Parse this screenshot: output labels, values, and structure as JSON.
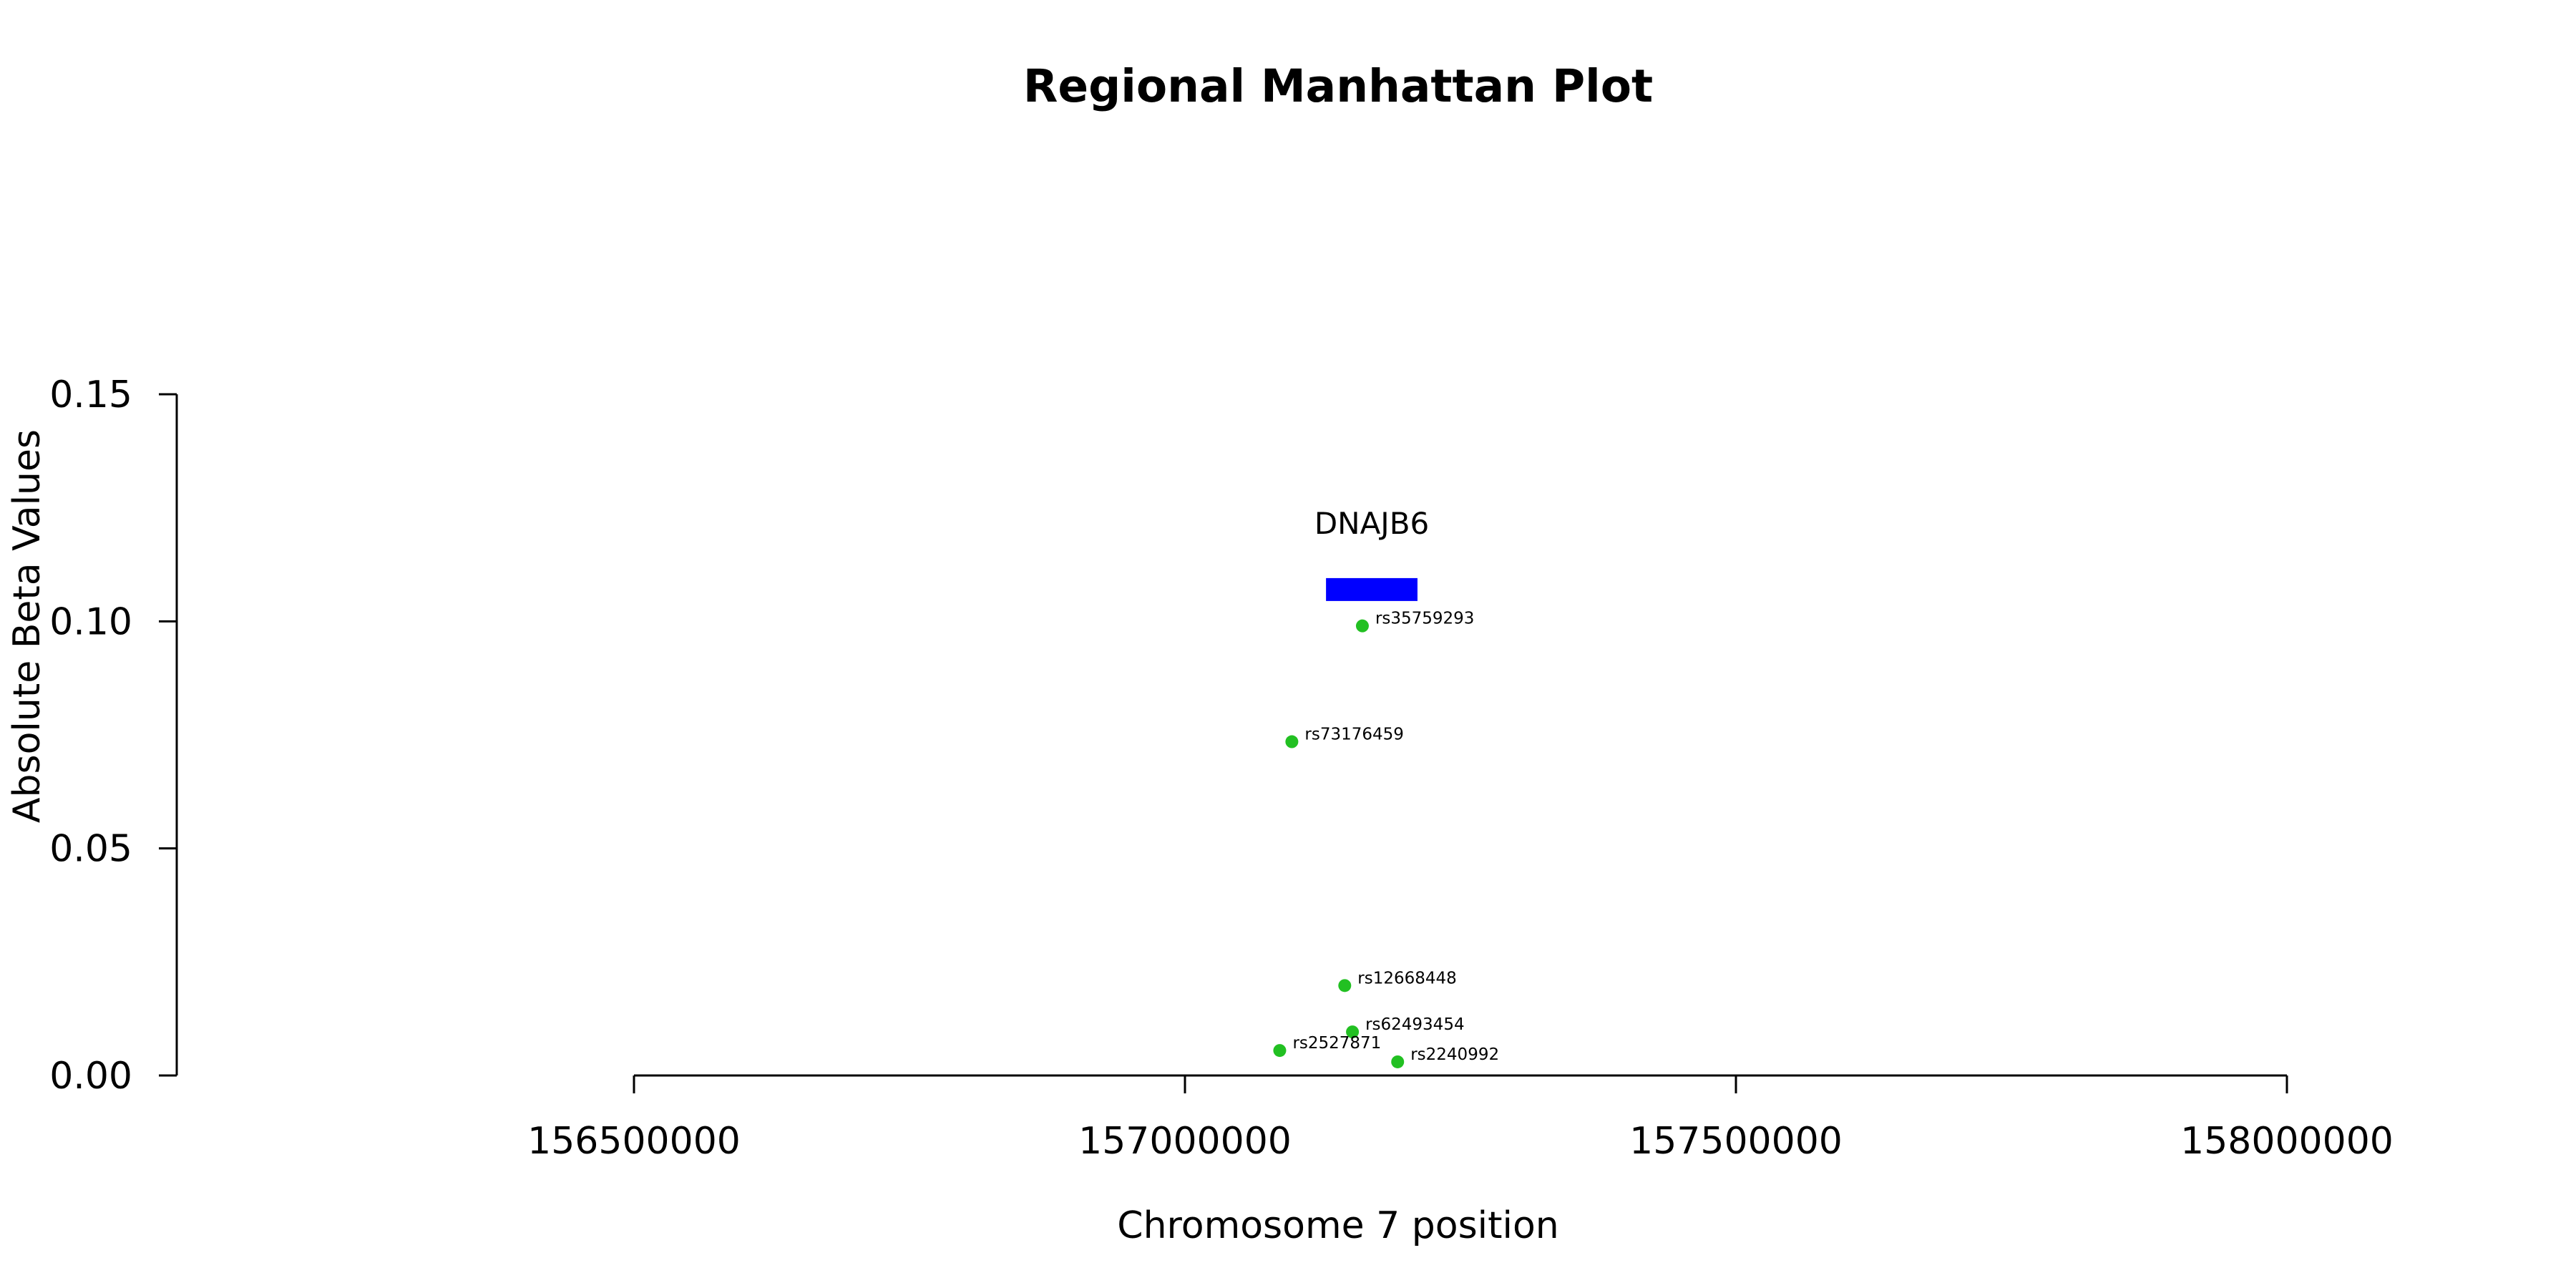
{
  "chart_data": {
    "type": "scatter",
    "title": "Regional Manhattan Plot",
    "xlabel": "Chromosome 7 position",
    "ylabel": "Absolute Beta Values",
    "xlim": [
      156500000,
      158000000
    ],
    "ylim": [
      0,
      0.15
    ],
    "x_ticks": [
      156500000,
      157000000,
      157500000,
      158000000
    ],
    "y_ticks": [
      0.0,
      0.05,
      0.1,
      0.15
    ],
    "x_tick_labels": [
      "156500000",
      "157000000",
      "157500000",
      "158000000"
    ],
    "y_tick_labels": [
      "0.00",
      "0.05",
      "0.10",
      "0.15"
    ],
    "point_color": "#22c022",
    "gene_color": "#0000ff",
    "points": [
      {
        "label": "rs35759293",
        "x": 157161000,
        "y": 0.099
      },
      {
        "label": "rs73176459",
        "x": 157097000,
        "y": 0.0735
      },
      {
        "label": "rs12668448",
        "x": 157145000,
        "y": 0.0198
      },
      {
        "label": "rs62493454",
        "x": 157152000,
        "y": 0.0096
      },
      {
        "label": "rs2527871",
        "x": 157086000,
        "y": 0.0055
      },
      {
        "label": "rs2240992",
        "x": 157193000,
        "y": 0.003
      }
    ],
    "genes": [
      {
        "name": "DNAJB6",
        "start": 157128000,
        "end": 157211000,
        "y": 0.107
      }
    ]
  }
}
